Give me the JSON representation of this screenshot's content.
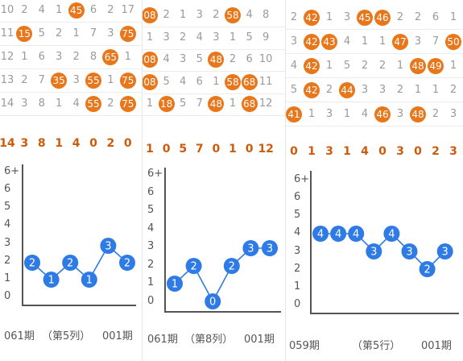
{
  "panels": [
    {
      "grid_rows": [
        [
          {
            "t": "10"
          },
          {
            "t": "2"
          },
          {
            "t": "4"
          },
          {
            "t": "1"
          },
          {
            "t": "45",
            "h": 1
          },
          {
            "t": "6"
          },
          {
            "t": "2"
          },
          {
            "t": "17"
          }
        ],
        [
          {
            "t": "11"
          },
          {
            "t": "15",
            "h": 1
          },
          {
            "t": "5"
          },
          {
            "t": "2"
          },
          {
            "t": "1"
          },
          {
            "t": "7"
          },
          {
            "t": "3"
          },
          {
            "t": "75",
            "h": 1
          }
        ],
        [
          {
            "t": "12"
          },
          {
            "t": "1"
          },
          {
            "t": "6"
          },
          {
            "t": "3"
          },
          {
            "t": "2"
          },
          {
            "t": "8"
          },
          {
            "t": "65",
            "h": 1
          },
          {
            "t": "1"
          }
        ],
        [
          {
            "t": "13"
          },
          {
            "t": "2"
          },
          {
            "t": "7"
          },
          {
            "t": "35",
            "h": 1
          },
          {
            "t": "3"
          },
          {
            "t": "55",
            "h": 1
          },
          {
            "t": "1"
          },
          {
            "t": "75",
            "h": 1
          }
        ],
        [
          {
            "t": "14"
          },
          {
            "t": "3"
          },
          {
            "t": "8"
          },
          {
            "t": "1"
          },
          {
            "t": "4"
          },
          {
            "t": "55",
            "h": 1
          },
          {
            "t": "2"
          },
          {
            "t": "75",
            "h": 1
          }
        ]
      ],
      "summary": [
        "14",
        "3",
        "8",
        "1",
        "4",
        "0",
        "2",
        "0"
      ]
    },
    {
      "grid_rows": [
        [
          {
            "t": "08",
            "h": 1
          },
          {
            "t": "2"
          },
          {
            "t": "1"
          },
          {
            "t": "3"
          },
          {
            "t": "2"
          },
          {
            "t": "58",
            "h": 1
          },
          {
            "t": "4"
          },
          {
            "t": "8"
          }
        ],
        [
          {
            "t": "1"
          },
          {
            "t": "3"
          },
          {
            "t": "2"
          },
          {
            "t": "4"
          },
          {
            "t": "3"
          },
          {
            "t": "1"
          },
          {
            "t": "5"
          },
          {
            "t": "9"
          }
        ],
        [
          {
            "t": "08",
            "h": 1
          },
          {
            "t": "4"
          },
          {
            "t": "3"
          },
          {
            "t": "5"
          },
          {
            "t": "48",
            "h": 1
          },
          {
            "t": "2"
          },
          {
            "t": "6"
          },
          {
            "t": "10"
          }
        ],
        [
          {
            "t": "08",
            "h": 1
          },
          {
            "t": "5"
          },
          {
            "t": "4"
          },
          {
            "t": "6"
          },
          {
            "t": "1"
          },
          {
            "t": "58",
            "h": 1
          },
          {
            "t": "68",
            "h": 1
          },
          {
            "t": "11"
          }
        ],
        [
          {
            "t": "1"
          },
          {
            "t": "18",
            "h": 1
          },
          {
            "t": "5"
          },
          {
            "t": "7"
          },
          {
            "t": "48",
            "h": 1
          },
          {
            "t": "1"
          },
          {
            "t": "68",
            "h": 1
          },
          {
            "t": "12"
          }
        ]
      ],
      "summary": [
        "1",
        "0",
        "5",
        "7",
        "0",
        "1",
        "0",
        "12"
      ]
    },
    {
      "grid_rows": [
        [
          {
            "t": "2"
          },
          {
            "t": "42",
            "h": 1
          },
          {
            "t": "1"
          },
          {
            "t": "3"
          },
          {
            "t": "45",
            "h": 1
          },
          {
            "t": "46",
            "h": 1
          },
          {
            "t": "2"
          },
          {
            "t": "2"
          },
          {
            "t": "6"
          },
          {
            "t": "1"
          }
        ],
        [
          {
            "t": "3"
          },
          {
            "t": "42",
            "h": 1
          },
          {
            "t": "43",
            "h": 1
          },
          {
            "t": "4"
          },
          {
            "t": "1"
          },
          {
            "t": "1"
          },
          {
            "t": "47",
            "h": 1
          },
          {
            "t": "3"
          },
          {
            "t": "7"
          },
          {
            "t": "50",
            "h": 1
          }
        ],
        [
          {
            "t": "4"
          },
          {
            "t": "42",
            "h": 1
          },
          {
            "t": "1"
          },
          {
            "t": "5"
          },
          {
            "t": "2"
          },
          {
            "t": "2"
          },
          {
            "t": "1"
          },
          {
            "t": "48",
            "h": 1
          },
          {
            "t": "49",
            "h": 1
          },
          {
            "t": "1"
          }
        ],
        [
          {
            "t": "5"
          },
          {
            "t": "42",
            "h": 1
          },
          {
            "t": "2"
          },
          {
            "t": "44",
            "h": 1
          },
          {
            "t": "3"
          },
          {
            "t": "3"
          },
          {
            "t": "2"
          },
          {
            "t": "1"
          },
          {
            "t": "1"
          },
          {
            "t": "2"
          }
        ],
        [
          {
            "t": "41",
            "h": 1
          },
          {
            "t": "1"
          },
          {
            "t": "3"
          },
          {
            "t": "1"
          },
          {
            "t": "4"
          },
          {
            "t": "46",
            "h": 1
          },
          {
            "t": "3"
          },
          {
            "t": "48",
            "h": 1
          },
          {
            "t": "2"
          },
          {
            "t": "3"
          }
        ]
      ],
      "summary": [
        "0",
        "1",
        "3",
        "1",
        "4",
        "0",
        "3",
        "0",
        "2",
        "3"
      ]
    }
  ],
  "chart_data": [
    {
      "type": "line",
      "y_tick_labels": [
        "0",
        "1",
        "2",
        "3",
        "4",
        "5",
        "6",
        "6+"
      ],
      "ylim": [
        0,
        6
      ],
      "x": [
        1,
        2,
        3,
        4,
        5,
        6
      ],
      "series": [
        {
          "values": [
            2,
            1,
            2,
            1,
            3,
            2
          ]
        }
      ],
      "caption": {
        "left": "061期",
        "mid": "（第5列）",
        "right": "001期"
      }
    },
    {
      "type": "line",
      "y_tick_labels": [
        "0",
        "1",
        "2",
        "3",
        "4",
        "5",
        "6",
        "6+"
      ],
      "ylim": [
        0,
        6
      ],
      "x": [
        1,
        2,
        3,
        4,
        5,
        6
      ],
      "series": [
        {
          "values": [
            1,
            2,
            0,
            2,
            3,
            3
          ]
        }
      ],
      "caption": {
        "left": "061期",
        "mid": "（第8列）",
        "right": "001期"
      }
    },
    {
      "type": "line",
      "y_tick_labels": [
        "0",
        "1",
        "2",
        "3",
        "4",
        "5",
        "6",
        "6+"
      ],
      "ylim": [
        0,
        6
      ],
      "x": [
        1,
        2,
        3,
        4,
        5,
        6,
        7,
        8
      ],
      "series": [
        {
          "values": [
            4,
            4,
            4,
            3,
            4,
            3,
            2,
            3
          ]
        }
      ],
      "caption": {
        "left": "059期",
        "mid": "（第5行）",
        "right": "001期"
      }
    }
  ],
  "colors": {
    "ball": "#e8761a",
    "point": "#2f7be6",
    "summary": "#cc5b0b",
    "line": "#2f7be6"
  }
}
